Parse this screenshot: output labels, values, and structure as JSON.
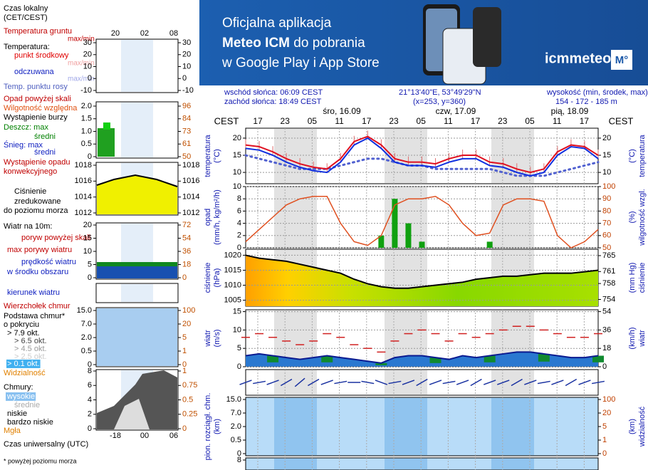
{
  "banner": {
    "line1": "Oficjalna aplikacja",
    "line2a": "Meteo ICM",
    "line2b": " do pobrania",
    "line3": "w Google Play i App Store",
    "logo": "icmmeteo",
    "badge": "M°"
  },
  "header": {
    "sunrise": "wschód słońca: 06:09 CEST",
    "sunset": "zachód słońca: 18:49 CEST",
    "coords": "21°13'40\"E, 53°49'29\"N",
    "grid": "(x=253,  y=360)",
    "elevation_label": "wysokość (min, środek, max)",
    "elevation": "154 - 172 - 185 m"
  },
  "legend": {
    "items": [
      {
        "text": "Czas lokalny",
        "color": "#000"
      },
      {
        "text": "(CET/CEST)",
        "color": "#000"
      },
      {
        "text": "Temperatura gruntu",
        "color": "#c00000"
      },
      {
        "text": "max/min",
        "color": "#c00000"
      },
      {
        "text": "Temperatura:",
        "color": "#000"
      },
      {
        "text": "punkt środkowy",
        "color": "#e00000"
      },
      {
        "text": "max/min",
        "color": "#f0a0a0"
      },
      {
        "text": "odczuwana",
        "color": "#1020c0"
      },
      {
        "text": "max/min",
        "color": "#a0a8e8"
      },
      {
        "text": "Temp. punktu rosy",
        "color": "#5060c0"
      },
      {
        "text": "Opad powyżej skali",
        "color": "#c00000"
      },
      {
        "text": "Wilgotność względna",
        "color": "#e05010"
      },
      {
        "text": "Wystąpienie burzy",
        "color": "#000"
      },
      {
        "text": "Deszcz: max",
        "color": "#008000"
      },
      {
        "text": "średni",
        "color": "#008000"
      },
      {
        "text": "Śnieg:  max",
        "color": "#1020c0"
      },
      {
        "text": "średni",
        "color": "#1020c0"
      },
      {
        "text": "Wystąpienie opadu",
        "color": "#c00000"
      },
      {
        "text": "konwekcyjnego",
        "color": "#c00000"
      },
      {
        "text": "Ciśnienie",
        "color": "#000"
      },
      {
        "text": "zredukowane",
        "color": "#000"
      },
      {
        "text": "do poziomu morza",
        "color": "#000"
      },
      {
        "text": "Wiatr na 10m:",
        "color": "#000"
      },
      {
        "text": "poryw powyżej skali",
        "color": "#c00000"
      },
      {
        "text": "max porywy wiatru",
        "color": "#c00000"
      },
      {
        "text": "prędkość wiatru",
        "color": "#1020c0"
      },
      {
        "text": "w środku obszaru",
        "color": "#1020c0"
      },
      {
        "text": "kierunek wiatru",
        "color": "#1020c0"
      },
      {
        "text": "Wierzchołek chmur",
        "color": "#c00000"
      },
      {
        "text": "Podstawa chmur*",
        "color": "#000"
      },
      {
        "text": "o pokryciu",
        "color": "#000"
      },
      {
        "text": "> 7.9 okt.",
        "color": "#000"
      },
      {
        "text": "> 6.5 okt.",
        "color": "#444"
      },
      {
        "text": "> 4.5 okt.",
        "color": "#999"
      },
      {
        "text": "> 2.5 okt.",
        "color": "#ccc"
      },
      {
        "text": "> 0.1 okt.",
        "color": "#fff"
      },
      {
        "text": "Widzialność",
        "color": "#e08000"
      },
      {
        "text": "Chmury:",
        "color": "#000"
      },
      {
        "text": "wysokie",
        "color": "#fff"
      },
      {
        "text": "średnie",
        "color": "#aaa"
      },
      {
        "text": "niskie",
        "color": "#000"
      },
      {
        "text": "bardzo niskie",
        "color": "#000"
      },
      {
        "text": "Mgła",
        "color": "#e08000"
      },
      {
        "text": "Czas uniwersalny (UTC)",
        "color": "#000"
      },
      {
        "text": "* powyżej poziomu morza",
        "color": "#000"
      }
    ],
    "hours_local": [
      "20",
      "02",
      "08"
    ],
    "hours_utc": [
      "-18",
      "00",
      "06"
    ],
    "axes": [
      {
        "left": [
          30,
          20,
          10,
          0,
          -10
        ],
        "right": [
          30,
          20,
          10,
          0,
          -10
        ]
      },
      {
        "left": [
          {
            "value": 2,
            "label": "2.0"
          },
          1.5,
          {
            "value": 1,
            "label": "1.0"
          },
          0.5,
          0
        ],
        "right": [
          96,
          84,
          73,
          61,
          50
        ]
      },
      {
        "left": [
          1018,
          1016,
          1014,
          1012
        ],
        "right": [
          1018,
          1016,
          1014,
          1012
        ]
      },
      {
        "left": [
          20,
          15,
          10,
          5,
          0
        ],
        "right": [
          72,
          54,
          36,
          18,
          0
        ]
      },
      {
        "left": [
          {
            "value": 15,
            "label": "15.0"
          },
          {
            "value": 7,
            "label": "7.0"
          },
          {
            "value": 2,
            "label": "2.0"
          },
          0.5,
          0
        ],
        "right": [
          100,
          20,
          5,
          1,
          0
        ]
      },
      {
        "left": [
          8,
          6,
          4,
          2,
          0
        ],
        "right": [
          1,
          0.75,
          0.5,
          0.25,
          0
        ]
      }
    ]
  },
  "chart_data": {
    "type": "meteogram",
    "tz": "CEST",
    "days": [
      "śro, 16.09",
      "czw, 17.09",
      "pią, 18.09"
    ],
    "hours": [
      "17",
      "23",
      "05",
      "11",
      "17",
      "23",
      "05",
      "11",
      "17",
      "23",
      "05",
      "11",
      "17"
    ],
    "panels": {
      "temperature": {
        "label": "temperatura",
        "unit": "(°C)",
        "ylim": [
          6.7,
          22.9
        ],
        "yticks": [
          20,
          15,
          10
        ],
        "series": [
          {
            "name": "punkt środkowy",
            "color": "#e01020",
            "values": [
              18,
              17.5,
              16,
              14,
              12.5,
              11.5,
              11,
              14,
              19,
              20.5,
              18,
              14,
              13,
              13,
              12.5,
              14,
              15,
              15,
              13,
              12.5,
              11,
              10,
              11,
              16,
              18,
              17.5,
              15
            ]
          },
          {
            "name": "odczuwana",
            "color": "#1030e0",
            "values": [
              17,
              16.5,
              15,
              13,
              11.5,
              10.5,
              10,
              13,
              18,
              20,
              17,
              13,
              12,
              12,
              11.5,
              13,
              14,
              14,
              12,
              11.5,
              10,
              9,
              10,
              15,
              17.5,
              17,
              14
            ]
          },
          {
            "name": "Temp. punktu rosy",
            "color": "#5060d0",
            "values": [
              15,
              14,
              13,
              12,
              11,
              11,
              11,
              12,
              13,
              14,
              14,
              13,
              12,
              12,
              11,
              11,
              11,
              11,
              11,
              10,
              9,
              9,
              9,
              10,
              11,
              12,
              13
            ]
          }
        ]
      },
      "precip": {
        "label": "opad",
        "unit": "(mm/h, kg/m²/h)",
        "y2label": "wilgotność wzgl.",
        "y2unit": "(%)",
        "ylim": [
          0,
          10
        ],
        "yticks": [
          10,
          8,
          6,
          4,
          2,
          0
        ],
        "y2lim": [
          50,
          100
        ],
        "y2ticks": [
          100,
          90,
          80,
          70,
          60,
          50
        ],
        "series": [
          {
            "name": "opad",
            "color": "#10a010",
            "values": [
              0,
              0,
              0,
              0,
              0,
              0,
              0,
              0,
              0,
              0,
              2,
              8,
              4,
              1,
              0,
              0,
              0,
              0,
              1,
              0,
              0,
              0,
              0,
              0,
              0,
              0,
              0
            ]
          },
          {
            "name": "wilgotność",
            "color": "#e05020",
            "axis": "y2",
            "values": [
              55,
              65,
              75,
              85,
              90,
              92,
              92,
              70,
              55,
              52,
              60,
              85,
              90,
              90,
              92,
              85,
              70,
              60,
              62,
              85,
              90,
              90,
              88,
              60,
              50,
              55,
              65
            ]
          }
        ]
      },
      "pressure": {
        "label": "ciśnienie",
        "unit": "(hPa)",
        "y2label": "ciśnienie",
        "y2unit": "(mm Hg)",
        "ylim": [
          1003,
          1022
        ],
        "yticks": [
          1020,
          1015,
          1010,
          1005
        ],
        "y2lim": [
          752.3,
          766.6
        ],
        "y2ticks": [
          765,
          761,
          758,
          754
        ],
        "series": [
          {
            "name": "ciśnienie",
            "color": "#000",
            "values": [
              1020,
              1019,
              1018.5,
              1018,
              1017,
              1016,
              1015,
              1014,
              1012,
              1010.5,
              1009.5,
              1009,
              1009,
              1009.5,
              1010,
              1010.5,
              1011,
              1012,
              1012.5,
              1013,
              1013,
              1013.5,
              1014,
              1014,
              1014,
              1014.5,
              1015
            ]
          }
        ]
      },
      "wind": {
        "label": "wiatr",
        "unit": "(m/s)",
        "y2label": "wiatr",
        "y2unit": "(km/h)",
        "ylim": [
          0,
          15.5
        ],
        "yticks": [
          15,
          10,
          5,
          0
        ],
        "y2lim": [
          0,
          55.8
        ],
        "y2ticks": [
          54,
          36,
          18,
          0
        ],
        "series": [
          {
            "name": "prędkość wiatru",
            "color": "#1840b0",
            "values": [
              3,
              3.5,
              3,
              2.5,
              2,
              2.5,
              3,
              2.5,
              2,
              1.5,
              1,
              2.5,
              3,
              3,
              2.5,
              2,
              3,
              2.5,
              3,
              3.5,
              4,
              4,
              3.5,
              3,
              2.5,
              2.5,
              3
            ]
          },
          {
            "name": "porywy",
            "color": "#d02020",
            "values": [
              8,
              9,
              8,
              7,
              6,
              7,
              9,
              8,
              6,
              5,
              4,
              7,
              9,
              10,
              9,
              7,
              9,
              8,
              9,
              10,
              11,
              11,
              10,
              9,
              8,
              8,
              9
            ]
          }
        ]
      },
      "winddir": {
        "color": "#1830a0",
        "values": [
          250,
          260,
          250,
          240,
          230,
          240,
          250,
          260,
          270,
          280,
          290,
          260,
          250,
          240,
          250,
          260,
          250,
          240,
          250,
          250,
          240,
          250,
          260,
          250,
          240,
          250,
          260
        ]
      },
      "cloud": {
        "label": "pion. rozciągł. chm.",
        "unit": "(km)",
        "y2label": "widzialność",
        "y2unit": "(km)",
        "yticks": [
          {
            "value": 15,
            "label": "15.0"
          },
          {
            "value": 7,
            "label": "7.0"
          },
          {
            "value": 2,
            "label": "2.0"
          },
          0.5,
          0
        ],
        "y2ticks": [
          100,
          20,
          5,
          1,
          0
        ]
      },
      "next": {
        "yticks": [
          8
        ]
      }
    }
  }
}
